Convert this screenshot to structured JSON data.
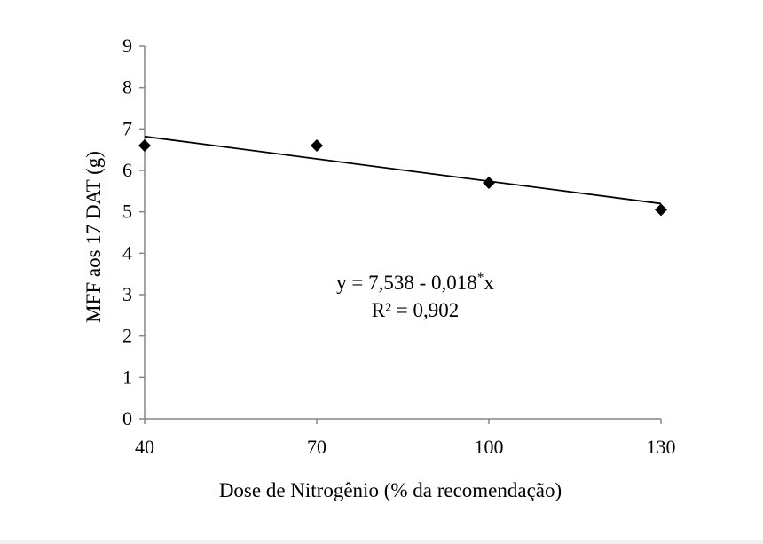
{
  "chart_data": {
    "type": "scatter",
    "xlabel": "Dose de Nitrogênio (% da recomendação)",
    "ylabel": "MFF aos 17 DAT (g)",
    "xlim": [
      40,
      130
    ],
    "ylim": [
      0,
      9
    ],
    "x_ticks": [
      40,
      70,
      100,
      130
    ],
    "y_ticks": [
      0,
      1,
      2,
      3,
      4,
      5,
      6,
      7,
      8,
      9
    ],
    "grid": false,
    "legend": "none",
    "points": {
      "x": [
        40,
        70,
        100,
        130
      ],
      "y": [
        6.6,
        6.6,
        5.7,
        5.05
      ]
    },
    "trendline": {
      "type": "linear",
      "intercept": 7.538,
      "slope": -0.018
    },
    "annotation": {
      "equation_main": "y = 7,538 - 0,018",
      "equation_sup": "*",
      "equation_end": "x",
      "r2": "R² = 0,902"
    },
    "colors": {
      "points": "#000000",
      "line": "#000000",
      "axes": "#868686",
      "outer_background": "#f1f1f1"
    }
  }
}
